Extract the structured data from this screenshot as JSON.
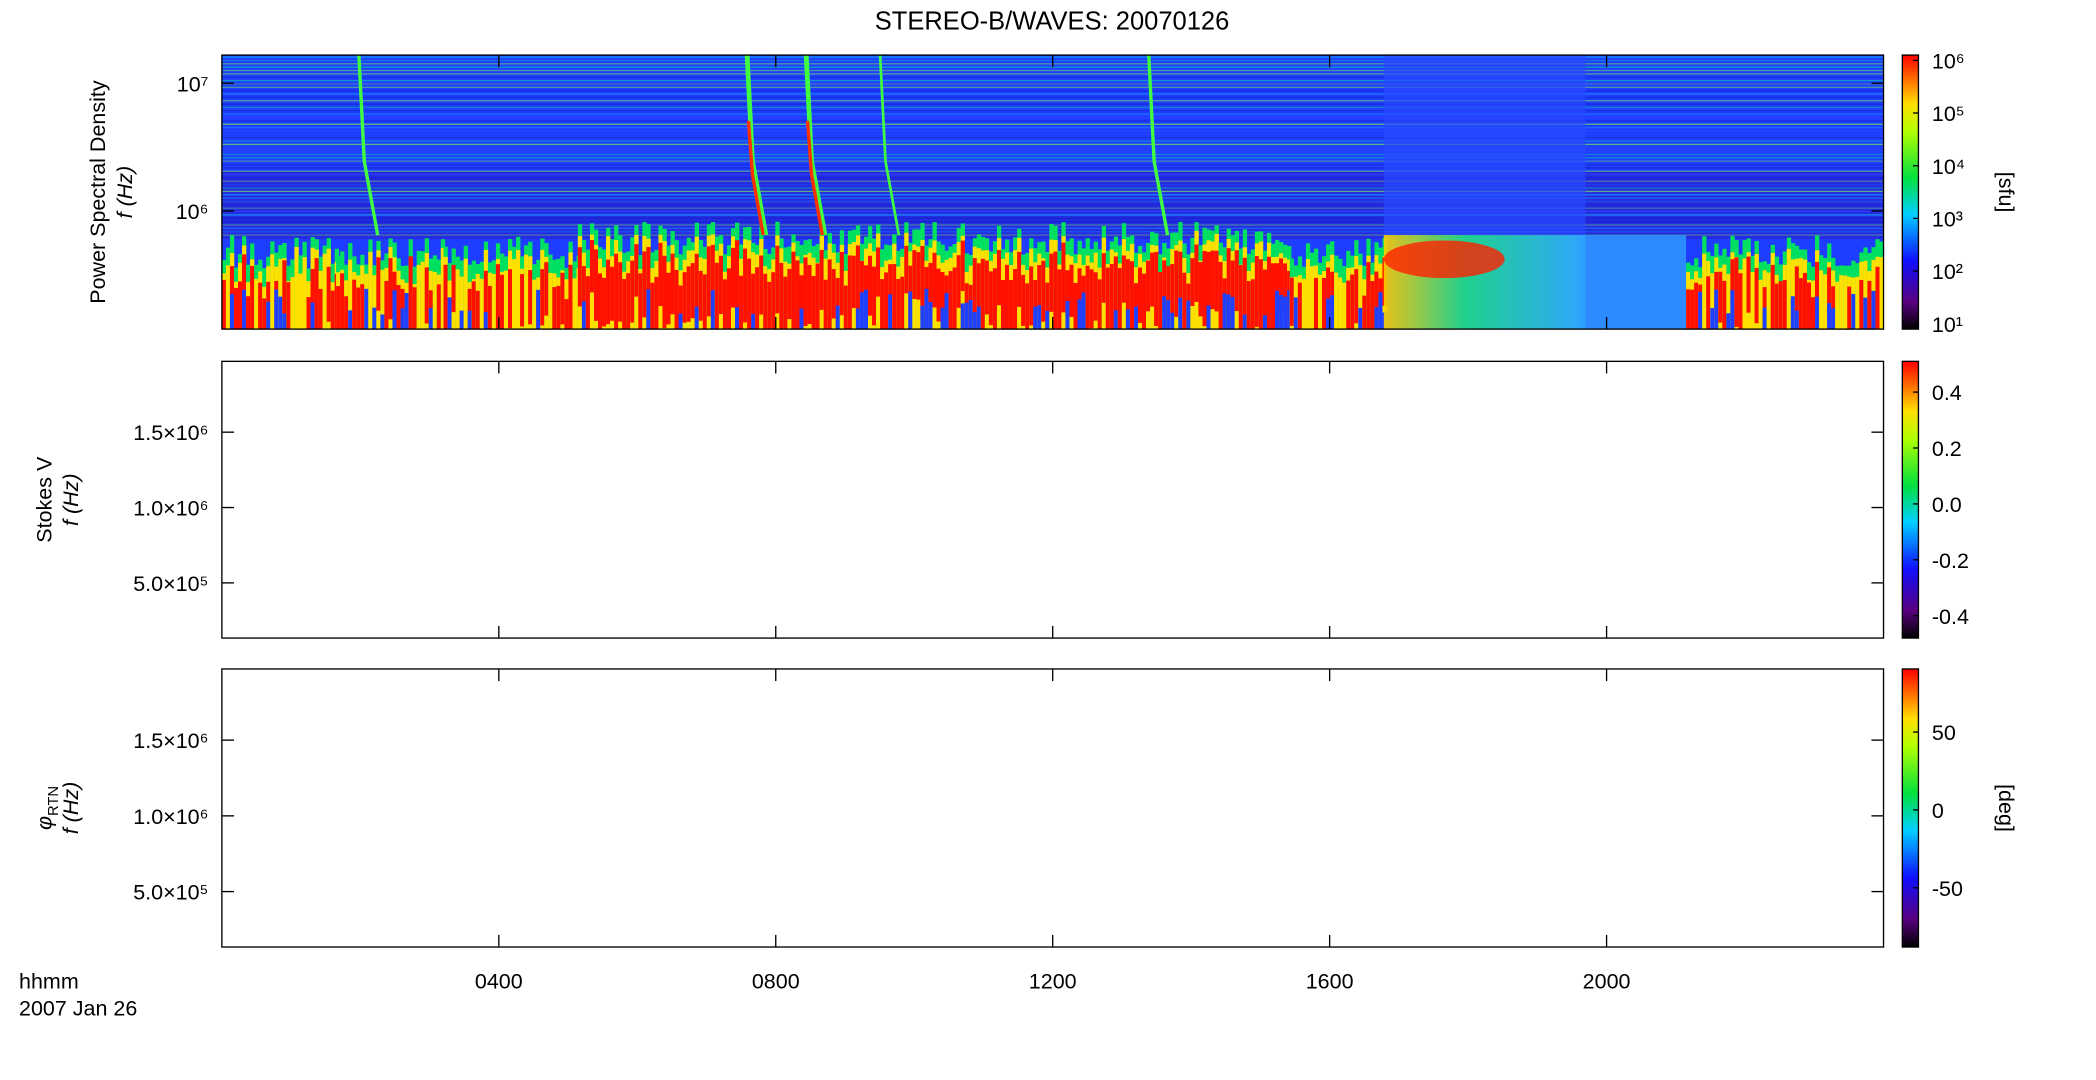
{
  "chart_data": {
    "type": "spectrogram",
    "title": "STEREO-B/WAVES: 20070126",
    "xlim": [
      0,
      24
    ],
    "xticks": [
      {
        "value": 4,
        "label": "0400"
      },
      {
        "value": 8,
        "label": "0800"
      },
      {
        "value": 12,
        "label": "1200"
      },
      {
        "value": 16,
        "label": "1600"
      },
      {
        "value": 20,
        "label": "2000"
      }
    ],
    "xlabel": [
      "hhmm",
      "2007 Jan 26"
    ],
    "panels": [
      {
        "ylabel": [
          "Power Spectral Density",
          "f (Hz)"
        ],
        "ylog": true,
        "ylim": [
          119000,
          16600000
        ],
        "yticks": [
          {
            "value": 1000000,
            "label": "10⁶"
          },
          {
            "value": 10000000,
            "label": "10⁷"
          }
        ],
        "colorbar": {
          "label": "[sfu]",
          "log": true,
          "clim": [
            7.9,
            1260000
          ],
          "ticks": [
            {
              "value": 10,
              "label": "10¹"
            },
            {
              "value": 100,
              "label": "10²"
            },
            {
              "value": 1000,
              "label": "10³"
            },
            {
              "value": 10000,
              "label": "10⁴"
            },
            {
              "value": 100000,
              "label": "10⁵"
            },
            {
              "value": 1000000,
              "label": "10⁶"
            }
          ]
        }
      },
      {
        "ylabel": [
          "Stokes V",
          "f (Hz)"
        ],
        "ylog": false,
        "ylim": [
          134000,
          1970000
        ],
        "yticks": [
          {
            "value": 500000,
            "label": "5.0×10⁵"
          },
          {
            "value": 1000000,
            "label": "1.0×10⁶"
          },
          {
            "value": 1500000,
            "label": "1.5×10⁶"
          }
        ],
        "colorbar": {
          "log": false,
          "clim": [
            -0.48,
            0.51
          ],
          "ticks": [
            -0.4,
            -0.2,
            {
              "value": 0,
              "label": "0.0"
            },
            0.2,
            0.4
          ]
        }
      },
      {
        "ylabel": [
          "φ",
          "RTN",
          "f (Hz)"
        ],
        "ylog": false,
        "ylim": [
          134000,
          1970000
        ],
        "yticks": [
          {
            "value": 500000,
            "label": "5.0×10⁵"
          },
          {
            "value": 1000000,
            "label": "1.0×10⁶"
          },
          {
            "value": 1500000,
            "label": "1.5×10⁶"
          }
        ],
        "colorbar": {
          "label": "[deg]",
          "log": false,
          "clim": [
            -88,
            90.5
          ],
          "ticks": [
            -50,
            0,
            50
          ]
        }
      }
    ]
  }
}
